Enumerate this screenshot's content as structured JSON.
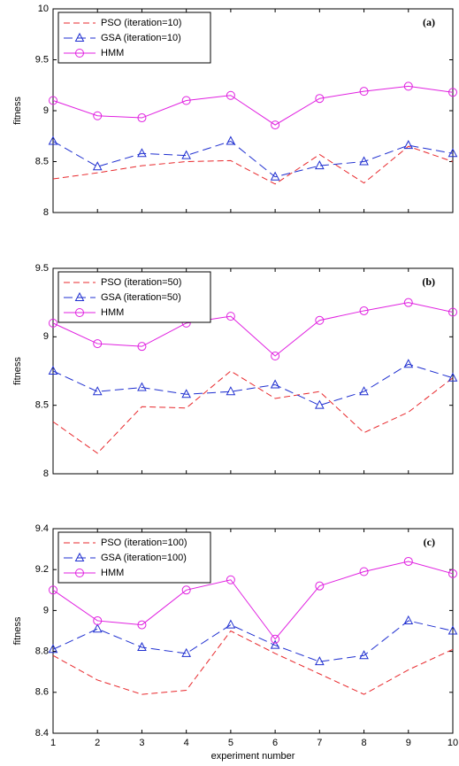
{
  "chart_data": [
    {
      "type": "line",
      "annotation": "(a)",
      "ylabel": "fitness",
      "x": [
        1,
        2,
        3,
        4,
        5,
        6,
        7,
        8,
        9,
        10
      ],
      "xlim": [
        1,
        10
      ],
      "ylim": [
        8,
        10
      ],
      "yticks": [
        8,
        8.5,
        9,
        9.5,
        10
      ],
      "series": [
        {
          "name": "PSO (iteration=10)",
          "color": "#e8282c",
          "linestyle": "dashed",
          "marker": "none",
          "values": [
            8.33,
            8.39,
            8.46,
            8.5,
            8.51,
            8.28,
            8.57,
            8.29,
            8.65,
            8.5
          ]
        },
        {
          "name": "GSA (iteration=10)",
          "color": "#1f2fd0",
          "linestyle": "longdash",
          "marker": "triangle",
          "values": [
            8.7,
            8.45,
            8.58,
            8.56,
            8.7,
            8.35,
            8.46,
            8.5,
            8.66,
            8.58
          ]
        },
        {
          "name": "HMM",
          "color": "#e020e0",
          "linestyle": "solid",
          "marker": "circle",
          "values": [
            9.1,
            8.95,
            8.93,
            9.1,
            9.15,
            8.86,
            9.12,
            9.19,
            9.24,
            9.18
          ]
        }
      ]
    },
    {
      "type": "line",
      "annotation": "(b)",
      "ylabel": "fitness",
      "x": [
        1,
        2,
        3,
        4,
        5,
        6,
        7,
        8,
        9,
        10
      ],
      "xlim": [
        1,
        10
      ],
      "ylim": [
        8,
        9.5
      ],
      "yticks": [
        8,
        8.5,
        9,
        9.5
      ],
      "series": [
        {
          "name": "PSO (iteration=50)",
          "color": "#e8282c",
          "linestyle": "dashed",
          "marker": "none",
          "values": [
            8.38,
            8.15,
            8.49,
            8.48,
            8.75,
            8.55,
            8.6,
            8.3,
            8.45,
            8.7
          ]
        },
        {
          "name": "GSA (iteration=50)",
          "color": "#1f2fd0",
          "linestyle": "longdash",
          "marker": "triangle",
          "values": [
            8.75,
            8.6,
            8.63,
            8.58,
            8.6,
            8.65,
            8.5,
            8.6,
            8.8,
            8.7
          ]
        },
        {
          "name": "HMM",
          "color": "#e020e0",
          "linestyle": "solid",
          "marker": "circle",
          "values": [
            9.1,
            8.95,
            8.93,
            9.1,
            9.15,
            8.86,
            9.12,
            9.19,
            9.25,
            9.18
          ]
        }
      ]
    },
    {
      "type": "line",
      "annotation": "(c)",
      "ylabel": "fitness",
      "xlabel": "experiment number",
      "x": [
        1,
        2,
        3,
        4,
        5,
        6,
        7,
        8,
        9,
        10
      ],
      "xlim": [
        1,
        10
      ],
      "xticks": [
        1,
        2,
        3,
        4,
        5,
        6,
        7,
        8,
        9,
        10
      ],
      "ylim": [
        8.4,
        9.4
      ],
      "yticks": [
        8.4,
        8.6,
        8.8,
        9,
        9.2,
        9.4
      ],
      "series": [
        {
          "name": "PSO (iteration=100)",
          "color": "#e8282c",
          "linestyle": "dashed",
          "marker": "none",
          "values": [
            8.78,
            8.66,
            8.59,
            8.61,
            8.9,
            8.79,
            8.69,
            8.59,
            8.71,
            8.81
          ]
        },
        {
          "name": "GSA (iteration=100)",
          "color": "#1f2fd0",
          "linestyle": "longdash",
          "marker": "triangle",
          "values": [
            8.81,
            8.91,
            8.82,
            8.79,
            8.93,
            8.83,
            8.75,
            8.78,
            8.95,
            8.9
          ]
        },
        {
          "name": "HMM",
          "color": "#e020e0",
          "linestyle": "solid",
          "marker": "circle",
          "values": [
            9.1,
            8.95,
            8.93,
            9.1,
            9.15,
            8.86,
            9.12,
            9.19,
            9.24,
            9.18
          ]
        }
      ]
    }
  ]
}
